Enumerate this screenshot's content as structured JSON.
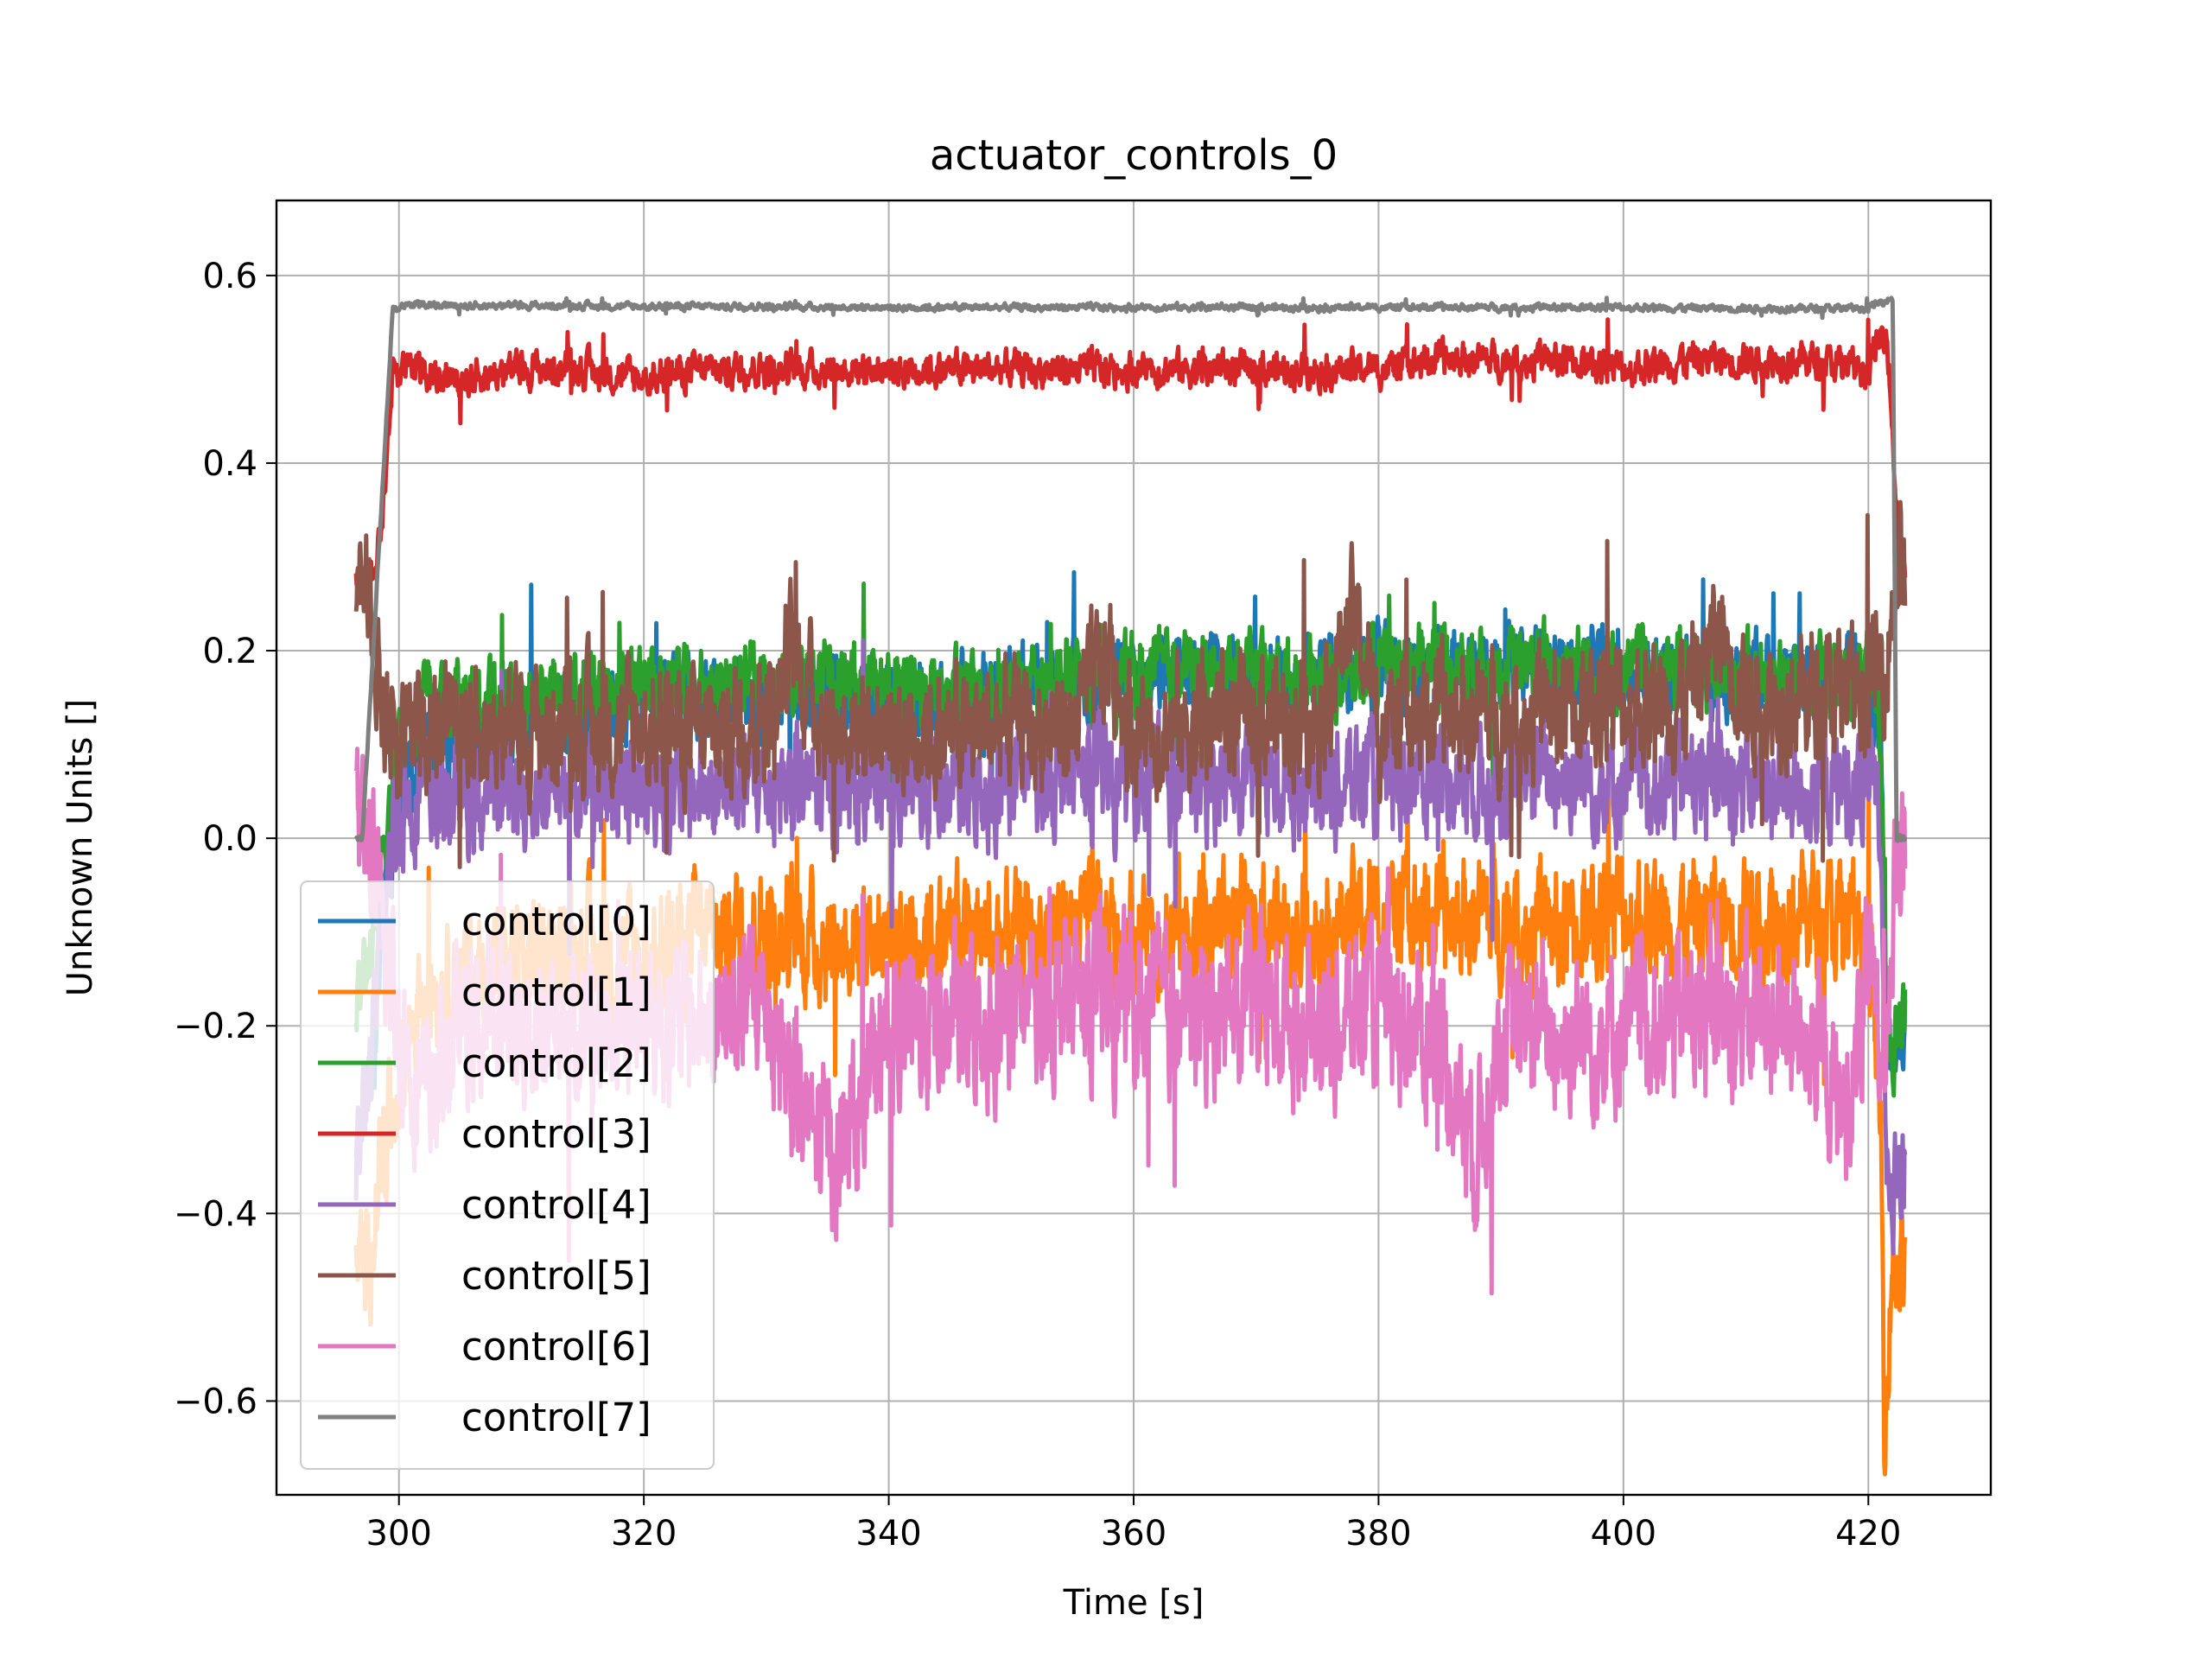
{
  "chart_data": {
    "type": "line",
    "title": "actuator_controls_0",
    "xlabel": "Time [s]",
    "ylabel": "Unknown Units []",
    "xlim": [
      290,
      430
    ],
    "ylim": [
      -0.7,
      0.68
    ],
    "xticks": [
      300,
      320,
      340,
      360,
      380,
      400,
      420
    ],
    "xtick_labels": [
      "300",
      "320",
      "340",
      "360",
      "380",
      "400",
      "420"
    ],
    "yticks": [
      -0.6,
      -0.4,
      -0.2,
      0.0,
      0.2,
      0.4,
      0.6
    ],
    "ytick_labels": [
      "−0.6",
      "−0.4",
      "−0.2",
      "0.0",
      "0.2",
      "0.4",
      "0.6"
    ],
    "grid": true,
    "legend_position": "lower-left",
    "time_range": [
      296.5,
      423
    ],
    "series": [
      {
        "name": "control[0]",
        "color": "#1f77b4",
        "points": [
          [
            296.5,
            -0.35
          ],
          [
            298,
            -0.22
          ],
          [
            299,
            -0.05
          ],
          [
            300,
            0.05
          ],
          [
            302,
            0.08
          ],
          [
            305,
            0.1
          ],
          [
            310,
            0.12
          ],
          [
            315,
            0.14
          ],
          [
            320,
            0.14
          ],
          [
            325,
            0.16
          ],
          [
            330,
            0.15
          ],
          [
            335,
            0.16
          ],
          [
            340,
            0.15
          ],
          [
            345,
            0.15
          ],
          [
            350,
            0.16
          ],
          [
            355,
            0.16
          ],
          [
            360,
            0.17
          ],
          [
            365,
            0.18
          ],
          [
            370,
            0.17
          ],
          [
            375,
            0.17
          ],
          [
            380,
            0.18
          ],
          [
            385,
            0.18
          ],
          [
            390,
            0.18
          ],
          [
            395,
            0.18
          ],
          [
            400,
            0.18
          ],
          [
            405,
            0.17
          ],
          [
            410,
            0.17
          ],
          [
            415,
            0.17
          ],
          [
            420,
            0.17
          ],
          [
            421,
            0.12
          ],
          [
            421.5,
            -0.2
          ],
          [
            422,
            -0.25
          ],
          [
            423,
            -0.2
          ]
        ]
      },
      {
        "name": "control[1]",
        "color": "#ff7f0e",
        "points": [
          [
            296.5,
            -0.46
          ],
          [
            297.5,
            -0.45
          ],
          [
            298.5,
            -0.35
          ],
          [
            300,
            -0.25
          ],
          [
            302,
            -0.15
          ],
          [
            305,
            -0.15
          ],
          [
            310,
            -0.13
          ],
          [
            315,
            -0.12
          ],
          [
            320,
            -0.13
          ],
          [
            325,
            -0.1
          ],
          [
            330,
            -0.1
          ],
          [
            335,
            -0.11
          ],
          [
            340,
            -0.1
          ],
          [
            345,
            -0.1
          ],
          [
            350,
            -0.11
          ],
          [
            355,
            -0.09
          ],
          [
            360,
            -0.1
          ],
          [
            365,
            -0.1
          ],
          [
            370,
            -0.09
          ],
          [
            375,
            -0.1
          ],
          [
            380,
            -0.08
          ],
          [
            385,
            -0.09
          ],
          [
            390,
            -0.08
          ],
          [
            395,
            -0.1
          ],
          [
            400,
            -0.08
          ],
          [
            405,
            -0.09
          ],
          [
            410,
            -0.08
          ],
          [
            415,
            -0.08
          ],
          [
            420,
            -0.1
          ],
          [
            421,
            -0.3
          ],
          [
            421.3,
            -0.6
          ],
          [
            422,
            -0.45
          ],
          [
            423,
            -0.46
          ]
        ]
      },
      {
        "name": "control[2]",
        "color": "#2ca02c",
        "points": [
          [
            296.5,
            -0.18
          ],
          [
            298,
            -0.1
          ],
          [
            299,
            0
          ],
          [
            300,
            0.12
          ],
          [
            302,
            0.15
          ],
          [
            305,
            0.14
          ],
          [
            310,
            0.15
          ],
          [
            315,
            0.16
          ],
          [
            320,
            0.17
          ],
          [
            325,
            0.16
          ],
          [
            330,
            0.17
          ],
          [
            335,
            0.17
          ],
          [
            340,
            0.16
          ],
          [
            345,
            0.15
          ],
          [
            350,
            0.16
          ],
          [
            355,
            0.17
          ],
          [
            360,
            0.17
          ],
          [
            365,
            0.18
          ],
          [
            370,
            0.17
          ],
          [
            375,
            0.17
          ],
          [
            380,
            0.18
          ],
          [
            385,
            0.19
          ],
          [
            390,
            0.18
          ],
          [
            395,
            0.19
          ],
          [
            400,
            0.18
          ],
          [
            405,
            0.18
          ],
          [
            410,
            0.17
          ],
          [
            415,
            0.17
          ],
          [
            420,
            0.17
          ],
          [
            421,
            0.1
          ],
          [
            421.5,
            -0.15
          ],
          [
            422,
            -0.22
          ],
          [
            423,
            -0.18
          ]
        ]
      },
      {
        "name": "control[3]",
        "color": "#d62728",
        "points": [
          [
            296.5,
            0.28
          ],
          [
            297.5,
            0.28
          ],
          [
            298.5,
            0.32
          ],
          [
            299.5,
            0.5
          ],
          [
            302,
            0.5
          ],
          [
            305,
            0.49
          ],
          [
            310,
            0.5
          ],
          [
            315,
            0.5
          ],
          [
            320,
            0.49
          ],
          [
            325,
            0.5
          ],
          [
            330,
            0.5
          ],
          [
            335,
            0.5
          ],
          [
            340,
            0.5
          ],
          [
            345,
            0.5
          ],
          [
            350,
            0.5
          ],
          [
            355,
            0.5
          ],
          [
            360,
            0.5
          ],
          [
            365,
            0.5
          ],
          [
            370,
            0.5
          ],
          [
            375,
            0.5
          ],
          [
            380,
            0.5
          ],
          [
            385,
            0.51
          ],
          [
            390,
            0.51
          ],
          [
            395,
            0.51
          ],
          [
            400,
            0.5
          ],
          [
            405,
            0.51
          ],
          [
            410,
            0.51
          ],
          [
            415,
            0.51
          ],
          [
            420,
            0.5
          ],
          [
            421.5,
            0.55
          ],
          [
            422.5,
            0.3
          ],
          [
            423,
            0.28
          ]
        ]
      },
      {
        "name": "control[4]",
        "color": "#9467bd",
        "points": [
          [
            296.5,
            -0.36
          ],
          [
            298,
            -0.2
          ],
          [
            299,
            -0.05
          ],
          [
            300,
            0.03
          ],
          [
            302,
            0.05
          ],
          [
            305,
            0.04
          ],
          [
            310,
            0.05
          ],
          [
            315,
            0.06
          ],
          [
            320,
            0.05
          ],
          [
            325,
            0.05
          ],
          [
            330,
            0.06
          ],
          [
            335,
            0.05
          ],
          [
            340,
            0.06
          ],
          [
            345,
            0.05
          ],
          [
            350,
            0.06
          ],
          [
            355,
            0.07
          ],
          [
            360,
            0.06
          ],
          [
            365,
            0.06
          ],
          [
            370,
            0.06
          ],
          [
            375,
            0.06
          ],
          [
            380,
            0.06
          ],
          [
            385,
            0.07
          ],
          [
            390,
            0.06
          ],
          [
            395,
            0.07
          ],
          [
            400,
            0.06
          ],
          [
            405,
            0.06
          ],
          [
            410,
            0.06
          ],
          [
            415,
            0.05
          ],
          [
            420,
            0.06
          ],
          [
            421,
            0
          ],
          [
            421.5,
            -0.3
          ],
          [
            422,
            -0.36
          ],
          [
            423,
            -0.36
          ]
        ]
      },
      {
        "name": "control[5]",
        "color": "#8c564b",
        "points": [
          [
            296.5,
            0.28
          ],
          [
            297.5,
            0.29
          ],
          [
            298.5,
            0.15
          ],
          [
            300,
            0.1
          ],
          [
            302,
            0.12
          ],
          [
            304,
            0.15
          ],
          [
            306,
            0.12
          ],
          [
            310,
            0.11
          ],
          [
            315,
            0.12
          ],
          [
            320,
            0.12
          ],
          [
            325,
            0.11
          ],
          [
            330,
            0.13
          ],
          [
            332,
            0.2
          ],
          [
            335,
            0.12
          ],
          [
            340,
            0.12
          ],
          [
            345,
            0.11
          ],
          [
            350,
            0.12
          ],
          [
            355,
            0.12
          ],
          [
            358,
            0.2
          ],
          [
            360,
            0.11
          ],
          [
            365,
            0.12
          ],
          [
            370,
            0.13
          ],
          [
            375,
            0.13
          ],
          [
            378,
            0.24
          ],
          [
            380,
            0.12
          ],
          [
            385,
            0.13
          ],
          [
            390,
            0.13
          ],
          [
            395,
            0.14
          ],
          [
            400,
            0.14
          ],
          [
            405,
            0.15
          ],
          [
            408,
            0.22
          ],
          [
            410,
            0.15
          ],
          [
            415,
            0.15
          ],
          [
            420,
            0.16
          ],
          [
            421.5,
            0.2
          ],
          [
            422.5,
            0.3
          ],
          [
            423,
            0.28
          ]
        ]
      },
      {
        "name": "control[6]",
        "color": "#e377c2",
        "points": [
          [
            296.5,
            0.01
          ],
          [
            297.5,
            0.01
          ],
          [
            298.5,
            -0.1
          ],
          [
            300,
            -0.2
          ],
          [
            302,
            -0.28
          ],
          [
            305,
            -0.2
          ],
          [
            310,
            -0.2
          ],
          [
            315,
            -0.2
          ],
          [
            320,
            -0.19
          ],
          [
            325,
            -0.2
          ],
          [
            330,
            -0.17
          ],
          [
            333,
            -0.3
          ],
          [
            336,
            -0.34
          ],
          [
            340,
            -0.2
          ],
          [
            345,
            -0.2
          ],
          [
            350,
            -0.19
          ],
          [
            355,
            -0.17
          ],
          [
            360,
            -0.18
          ],
          [
            365,
            -0.19
          ],
          [
            370,
            -0.18
          ],
          [
            375,
            -0.2
          ],
          [
            380,
            -0.18
          ],
          [
            385,
            -0.22
          ],
          [
            388,
            -0.33
          ],
          [
            390,
            -0.2
          ],
          [
            395,
            -0.21
          ],
          [
            400,
            -0.2
          ],
          [
            405,
            -0.19
          ],
          [
            410,
            -0.19
          ],
          [
            415,
            -0.2
          ],
          [
            418,
            -0.3
          ],
          [
            420,
            -0.15
          ],
          [
            421,
            -0.25
          ],
          [
            422,
            -0.05
          ],
          [
            423,
            0
          ]
        ]
      },
      {
        "name": "control[7]",
        "color": "#7f7f7f",
        "points": [
          [
            296.5,
            0
          ],
          [
            297,
            0
          ],
          [
            299.5,
            0.565
          ],
          [
            302,
            0.57
          ],
          [
            305,
            0.568
          ],
          [
            310,
            0.568
          ],
          [
            320,
            0.567
          ],
          [
            330,
            0.567
          ],
          [
            340,
            0.566
          ],
          [
            350,
            0.566
          ],
          [
            360,
            0.566
          ],
          [
            370,
            0.566
          ],
          [
            380,
            0.566
          ],
          [
            390,
            0.566
          ],
          [
            400,
            0.566
          ],
          [
            410,
            0.565
          ],
          [
            420,
            0.565
          ],
          [
            421.5,
            0.575
          ],
          [
            422,
            0.575
          ],
          [
            422.3,
            0
          ],
          [
            423,
            0
          ]
        ]
      }
    ]
  }
}
